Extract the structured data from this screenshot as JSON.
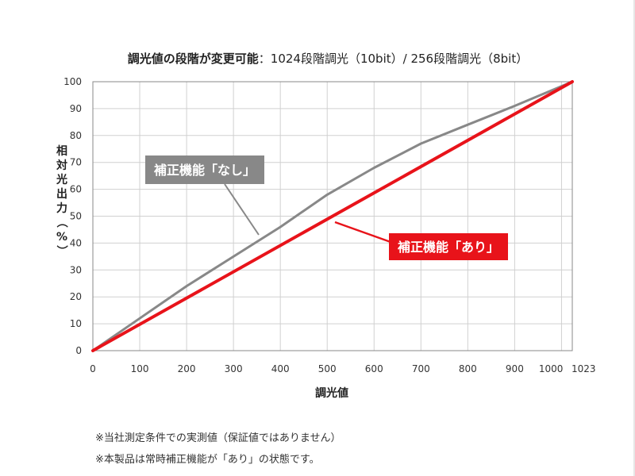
{
  "chart_data": {
    "type": "line",
    "title_bold": "調光値の段階が変更可能",
    "title_rest": "：1024段階調光（10bit）/ 256段階調光（8bit）",
    "xlabel": "調光値",
    "ylabel": "相対光出力（%）",
    "xlim": [
      0,
      1023
    ],
    "ylim": [
      0,
      100
    ],
    "x_ticks": [
      0,
      100,
      200,
      300,
      400,
      500,
      600,
      700,
      800,
      900,
      1000,
      1023
    ],
    "y_ticks": [
      0,
      10,
      20,
      30,
      40,
      50,
      60,
      70,
      80,
      90,
      100
    ],
    "grid": true,
    "series": [
      {
        "name": "補正機能「なし」",
        "color": "#888888",
        "x": [
          0,
          100,
          200,
          300,
          400,
          500,
          600,
          700,
          800,
          900,
          1023
        ],
        "y": [
          0,
          12,
          24,
          35,
          46,
          58,
          68,
          77,
          84,
          91,
          100
        ]
      },
      {
        "name": "補正機能「あり」",
        "color": "#e8131a",
        "x": [
          0,
          1023
        ],
        "y": [
          0,
          100
        ]
      }
    ]
  },
  "notes": [
    "※当社測定条件での実測値（保証値ではありません）",
    "※本製品は常時補正機能が「あり」の状態です。"
  ]
}
